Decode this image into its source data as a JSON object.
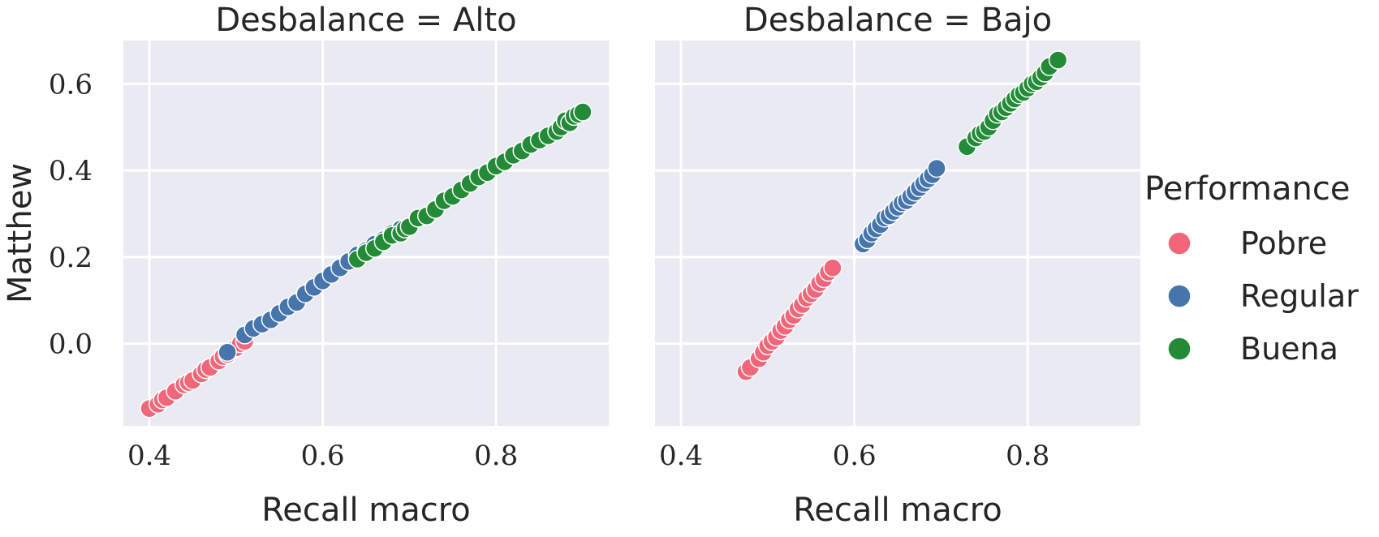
{
  "chart_data": {
    "type": "scatter",
    "facet_label": "Desbalance",
    "panels": [
      {
        "title": "Desbalance = Alto",
        "xlabel": "Recall macro",
        "ylabel": "Matthew",
        "xlim": [
          0.37,
          0.93
        ],
        "ylim": [
          -0.19,
          0.7
        ],
        "xticks": [
          0.4,
          0.6,
          0.8
        ],
        "yticks": [
          0.0,
          0.2,
          0.4,
          0.6
        ],
        "series": [
          {
            "name": "Pobre",
            "color": "#f0677a",
            "points": [
              [
                0.4,
                -0.15
              ],
              [
                0.41,
                -0.14
              ],
              [
                0.415,
                -0.13
              ],
              [
                0.42,
                -0.125
              ],
              [
                0.43,
                -0.11
              ],
              [
                0.44,
                -0.095
              ],
              [
                0.445,
                -0.09
              ],
              [
                0.45,
                -0.085
              ],
              [
                0.46,
                -0.07
              ],
              [
                0.465,
                -0.06
              ],
              [
                0.47,
                -0.055
              ],
              [
                0.48,
                -0.04
              ],
              [
                0.485,
                -0.03
              ],
              [
                0.49,
                -0.025
              ],
              [
                0.5,
                -0.01
              ],
              [
                0.505,
                0.0
              ],
              [
                0.51,
                0.005
              ]
            ]
          },
          {
            "name": "Regular",
            "color": "#4575ab",
            "points": [
              [
                0.49,
                -0.02
              ],
              [
                0.51,
                0.02
              ],
              [
                0.52,
                0.035
              ],
              [
                0.53,
                0.045
              ],
              [
                0.54,
                0.055
              ],
              [
                0.55,
                0.07
              ],
              [
                0.56,
                0.085
              ],
              [
                0.57,
                0.095
              ],
              [
                0.58,
                0.115
              ],
              [
                0.59,
                0.13
              ],
              [
                0.6,
                0.145
              ],
              [
                0.61,
                0.16
              ],
              [
                0.62,
                0.175
              ],
              [
                0.63,
                0.19
              ],
              [
                0.64,
                0.205
              ],
              [
                0.65,
                0.215
              ],
              [
                0.66,
                0.23
              ],
              [
                0.67,
                0.24
              ],
              [
                0.68,
                0.255
              ],
              [
                0.69,
                0.265
              ]
            ]
          },
          {
            "name": "Buena",
            "color": "#238b38",
            "points": [
              [
                0.64,
                0.195
              ],
              [
                0.65,
                0.21
              ],
              [
                0.66,
                0.22
              ],
              [
                0.67,
                0.235
              ],
              [
                0.68,
                0.25
              ],
              [
                0.69,
                0.255
              ],
              [
                0.695,
                0.265
              ],
              [
                0.7,
                0.27
              ],
              [
                0.71,
                0.29
              ],
              [
                0.72,
                0.295
              ],
              [
                0.73,
                0.31
              ],
              [
                0.74,
                0.33
              ],
              [
                0.75,
                0.34
              ],
              [
                0.76,
                0.355
              ],
              [
                0.77,
                0.37
              ],
              [
                0.78,
                0.385
              ],
              [
                0.79,
                0.395
              ],
              [
                0.8,
                0.41
              ],
              [
                0.81,
                0.42
              ],
              [
                0.82,
                0.435
              ],
              [
                0.83,
                0.445
              ],
              [
                0.84,
                0.46
              ],
              [
                0.85,
                0.47
              ],
              [
                0.86,
                0.48
              ],
              [
                0.87,
                0.49
              ],
              [
                0.875,
                0.5
              ],
              [
                0.88,
                0.515
              ],
              [
                0.885,
                0.51
              ],
              [
                0.89,
                0.525
              ],
              [
                0.895,
                0.53
              ],
              [
                0.9,
                0.535
              ]
            ]
          }
        ]
      },
      {
        "title": "Desbalance = Bajo",
        "xlabel": "Recall macro",
        "ylabel": "",
        "xlim": [
          0.37,
          0.93
        ],
        "ylim": [
          -0.19,
          0.7
        ],
        "xticks": [
          0.4,
          0.6,
          0.8
        ],
        "yticks": [
          0.0,
          0.2,
          0.4,
          0.6
        ],
        "series": [
          {
            "name": "Pobre",
            "color": "#f0677a",
            "points": [
              [
                0.475,
                -0.065
              ],
              [
                0.48,
                -0.055
              ],
              [
                0.49,
                -0.035
              ],
              [
                0.495,
                -0.02
              ],
              [
                0.5,
                -0.005
              ],
              [
                0.505,
                0.005
              ],
              [
                0.51,
                0.015
              ],
              [
                0.515,
                0.03
              ],
              [
                0.52,
                0.04
              ],
              [
                0.525,
                0.055
              ],
              [
                0.53,
                0.065
              ],
              [
                0.535,
                0.08
              ],
              [
                0.54,
                0.09
              ],
              [
                0.545,
                0.105
              ],
              [
                0.55,
                0.115
              ],
              [
                0.555,
                0.125
              ],
              [
                0.56,
                0.14
              ],
              [
                0.565,
                0.15
              ],
              [
                0.57,
                0.165
              ],
              [
                0.575,
                0.175
              ]
            ]
          },
          {
            "name": "Regular",
            "color": "#4575ab",
            "points": [
              [
                0.61,
                0.23
              ],
              [
                0.615,
                0.24
              ],
              [
                0.62,
                0.255
              ],
              [
                0.625,
                0.265
              ],
              [
                0.63,
                0.275
              ],
              [
                0.635,
                0.29
              ],
              [
                0.64,
                0.295
              ],
              [
                0.645,
                0.305
              ],
              [
                0.65,
                0.315
              ],
              [
                0.655,
                0.325
              ],
              [
                0.66,
                0.33
              ],
              [
                0.665,
                0.34
              ],
              [
                0.67,
                0.35
              ],
              [
                0.675,
                0.36
              ],
              [
                0.68,
                0.37
              ],
              [
                0.685,
                0.38
              ],
              [
                0.69,
                0.39
              ],
              [
                0.695,
                0.405
              ]
            ]
          },
          {
            "name": "Buena",
            "color": "#238b38",
            "points": [
              [
                0.73,
                0.455
              ],
              [
                0.74,
                0.475
              ],
              [
                0.745,
                0.485
              ],
              [
                0.75,
                0.49
              ],
              [
                0.755,
                0.5
              ],
              [
                0.76,
                0.515
              ],
              [
                0.765,
                0.53
              ],
              [
                0.77,
                0.535
              ],
              [
                0.775,
                0.545
              ],
              [
                0.78,
                0.555
              ],
              [
                0.785,
                0.565
              ],
              [
                0.79,
                0.575
              ],
              [
                0.795,
                0.58
              ],
              [
                0.8,
                0.59
              ],
              [
                0.805,
                0.6
              ],
              [
                0.81,
                0.605
              ],
              [
                0.815,
                0.615
              ],
              [
                0.82,
                0.625
              ],
              [
                0.825,
                0.64
              ],
              [
                0.835,
                0.655
              ]
            ]
          }
        ]
      }
    ],
    "legend": {
      "title": "Performance",
      "placement": "right",
      "entries": [
        {
          "label": "Pobre",
          "color": "#f0677a"
        },
        {
          "label": "Regular",
          "color": "#4575ab"
        },
        {
          "label": "Buena",
          "color": "#238b38"
        }
      ]
    },
    "grid": true,
    "background_color": "#eaeaf2",
    "marker_edge_color": "#ffffff"
  }
}
